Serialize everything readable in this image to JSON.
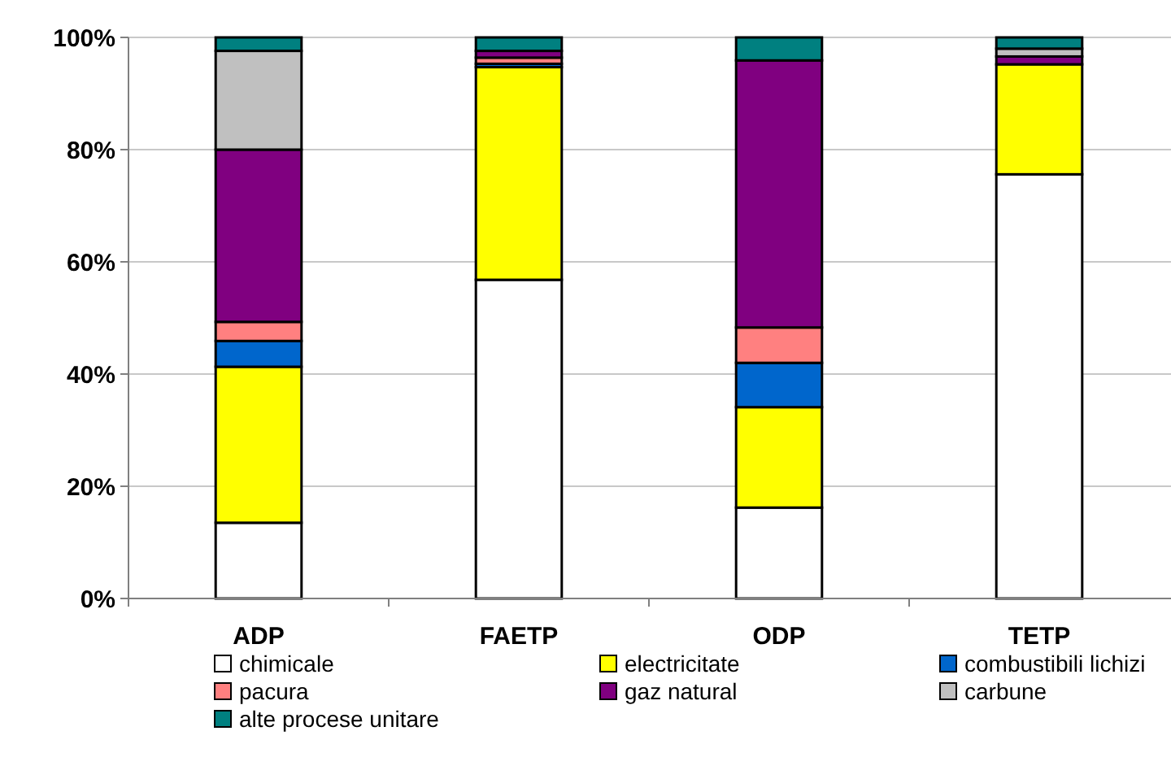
{
  "chart_data": {
    "type": "bar",
    "stacked": true,
    "categories": [
      "ADP",
      "FAETP",
      "ODP",
      "TETP"
    ],
    "ylim": [
      0,
      100
    ],
    "yticks": [
      {
        "value": 0,
        "label": "0%"
      },
      {
        "value": 20,
        "label": "20%"
      },
      {
        "value": 40,
        "label": "40%"
      },
      {
        "value": 60,
        "label": "60%"
      },
      {
        "value": 80,
        "label": "80%"
      },
      {
        "value": 100,
        "label": "100%"
      }
    ],
    "grid": "y",
    "legend": "bottom",
    "series": [
      {
        "name": "chimicale",
        "color": "#ffffff",
        "values": [
          13.5,
          56.8,
          16.2,
          75.6
        ]
      },
      {
        "name": "electricitate",
        "color": "#ffff00",
        "values": [
          27.8,
          37.9,
          17.9,
          19.6
        ]
      },
      {
        "name": "combustibili lichizi",
        "color": "#0066cc",
        "values": [
          4.6,
          0.6,
          7.9,
          null
        ]
      },
      {
        "name": "pacura",
        "color": "#ff8080",
        "values": [
          3.4,
          1.1,
          6.3,
          null
        ]
      },
      {
        "name": "gaz natural",
        "color": "#800080",
        "values": [
          30.7,
          1.2,
          47.6,
          1.4
        ]
      },
      {
        "name": "carbune",
        "color": "#c0c0c0",
        "values": [
          17.6,
          null,
          0,
          1.4
        ]
      },
      {
        "name": "alte procese unitare",
        "color": "#008080",
        "values": [
          2.4,
          2.4,
          4.1,
          2.0
        ]
      }
    ]
  }
}
